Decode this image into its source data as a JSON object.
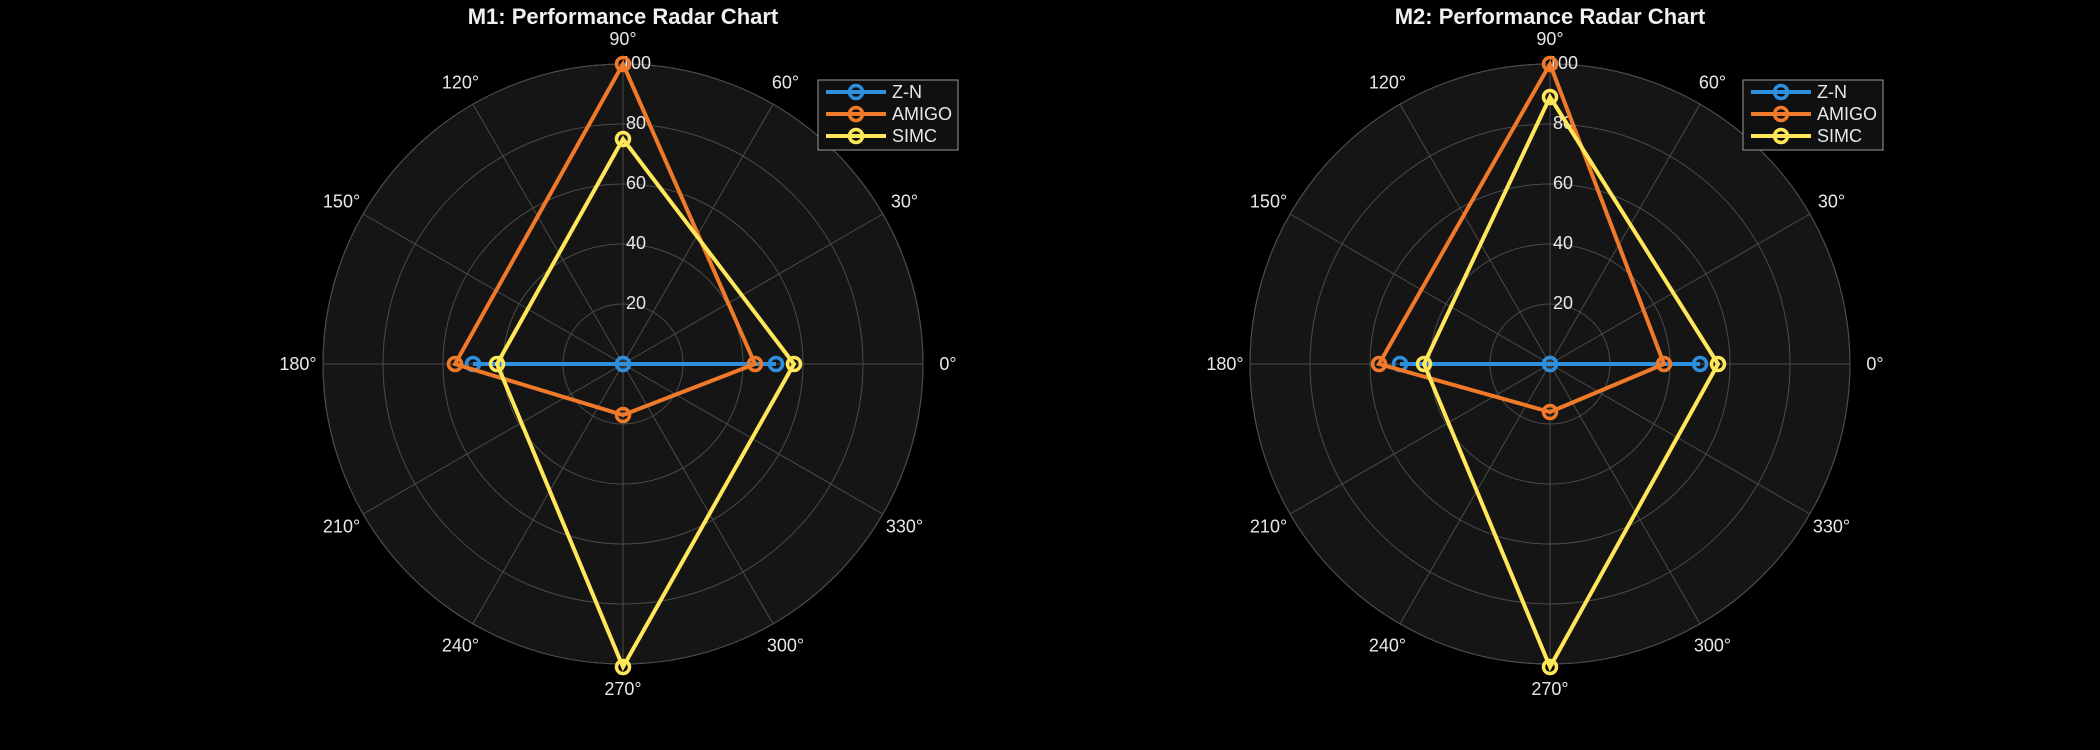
{
  "chart_data": [
    {
      "type": "radar",
      "title": "M1: Performance Radar Chart",
      "theta_ticks": [
        "0°",
        "30°",
        "60°",
        "90°",
        "120°",
        "150°",
        "180°",
        "210°",
        "240°",
        "270°",
        "300°",
        "330°"
      ],
      "r_ticks": [
        "20",
        "40",
        "60",
        "80",
        "100"
      ],
      "rlim": [
        0,
        100
      ],
      "axes_deg": [
        0,
        90,
        180,
        270
      ],
      "grid": true,
      "legend_position": "top-right",
      "series": [
        {
          "name": "Z-N",
          "color": "#2f8fdf",
          "values": [
            51,
            0,
            50,
            0
          ]
        },
        {
          "name": "AMIGO",
          "color": "#f07a2a",
          "values": [
            44,
            100,
            56,
            17
          ]
        },
        {
          "name": "SIMC",
          "color": "#ffe75a",
          "values": [
            57,
            75,
            42,
            101
          ]
        }
      ]
    },
    {
      "type": "radar",
      "title": "M2: Performance Radar Chart",
      "theta_ticks": [
        "0°",
        "30°",
        "60°",
        "90°",
        "120°",
        "150°",
        "180°",
        "210°",
        "240°",
        "270°",
        "300°",
        "330°"
      ],
      "r_ticks": [
        "20",
        "40",
        "60",
        "80",
        "100"
      ],
      "rlim": [
        0,
        100
      ],
      "axes_deg": [
        0,
        90,
        180,
        270
      ],
      "grid": true,
      "legend_position": "top-right",
      "series": [
        {
          "name": "Z-N",
          "color": "#2f8fdf",
          "values": [
            50,
            0,
            50,
            0
          ]
        },
        {
          "name": "AMIGO",
          "color": "#f07a2a",
          "values": [
            38,
            100,
            57,
            16
          ]
        },
        {
          "name": "SIMC",
          "color": "#ffe75a",
          "values": [
            56,
            89,
            42,
            101
          ]
        }
      ]
    }
  ]
}
